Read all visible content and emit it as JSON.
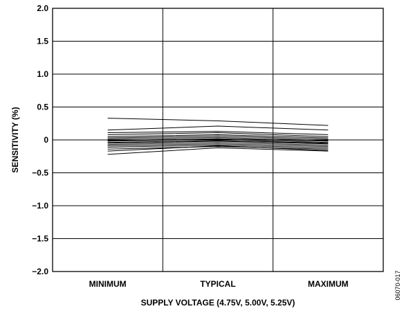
{
  "chart_data": {
    "type": "line",
    "xlabel": "SUPPLY VOLTAGE (4.75V, 5.00V, 5.25V)",
    "ylabel": "SENSITIVITY (%)",
    "categories": [
      "MINIMUM",
      "TYPICAL",
      "MAXIMUM"
    ],
    "ylim": [
      -2.0,
      2.0
    ],
    "yticks": [
      2.0,
      1.5,
      1.0,
      0.5,
      0,
      -0.5,
      -1.0,
      -1.5,
      -2.0
    ],
    "ytick_labels": [
      "2.0",
      "1.5",
      "1.0",
      "0.5",
      "0",
      "−0.5",
      "−1.0",
      "−1.5",
      "−2.0"
    ],
    "grid": true,
    "figure_id": "06070-017",
    "series": [
      {
        "values": [
          0.33,
          0.29,
          0.22
        ]
      },
      {
        "values": [
          0.15,
          0.21,
          0.15
        ]
      },
      {
        "values": [
          0.11,
          0.13,
          0.08
        ]
      },
      {
        "values": [
          0.08,
          0.11,
          0.05
        ]
      },
      {
        "values": [
          0.05,
          0.08,
          0.03
        ]
      },
      {
        "values": [
          0.03,
          0.06,
          0.01
        ]
      },
      {
        "values": [
          0.01,
          0.04,
          -0.01
        ]
      },
      {
        "values": [
          -0.01,
          0.02,
          -0.02
        ]
      },
      {
        "values": [
          -0.02,
          0.01,
          -0.04
        ]
      },
      {
        "values": [
          -0.04,
          -0.01,
          -0.05
        ]
      },
      {
        "values": [
          -0.05,
          -0.02,
          -0.06
        ]
      },
      {
        "values": [
          -0.07,
          -0.04,
          -0.08
        ]
      },
      {
        "values": [
          -0.09,
          -0.06,
          -0.1
        ]
      },
      {
        "values": [
          -0.11,
          -0.08,
          -0.12
        ]
      },
      {
        "values": [
          -0.14,
          -0.1,
          -0.14
        ]
      },
      {
        "values": [
          -0.17,
          -0.09,
          -0.16
        ]
      },
      {
        "values": [
          -0.22,
          -0.12,
          -0.17
        ]
      }
    ],
    "style": {
      "line_color": "#000000",
      "grid_color": "#000000",
      "background": "#ffffff"
    }
  }
}
